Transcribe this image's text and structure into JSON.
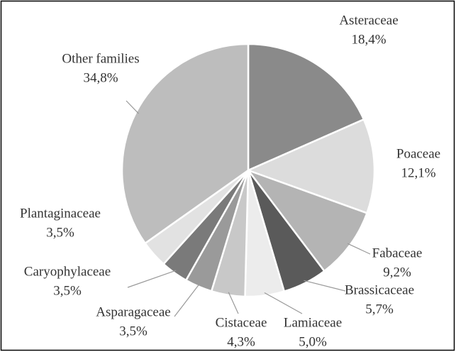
{
  "chart_data": {
    "type": "pie",
    "categories": [
      "Asteraceae",
      "Poaceae",
      "Fabaceae",
      "Brassicaceae",
      "Lamiaceae",
      "Cistaceae",
      "Asparagaceae",
      "Caryophylaceae",
      "Plantaginaceae",
      "Other families"
    ],
    "values": [
      18.4,
      12.1,
      9.2,
      5.7,
      5.0,
      4.3,
      3.5,
      3.5,
      3.5,
      34.8
    ],
    "value_labels": [
      "18,4%",
      "12,1%",
      "9,2%",
      "5,7%",
      "5,0%",
      "4,3%",
      "3,5%",
      "3,5%",
      "3,5%",
      "34,8%"
    ],
    "colors": [
      "#8a8a8a",
      "#dcdcdc",
      "#b4b4b4",
      "#5a5a5a",
      "#ececec",
      "#c8c8c8",
      "#9a9a9a",
      "#7a7a7a",
      "#e2e2e2",
      "#bdbdbd"
    ]
  }
}
